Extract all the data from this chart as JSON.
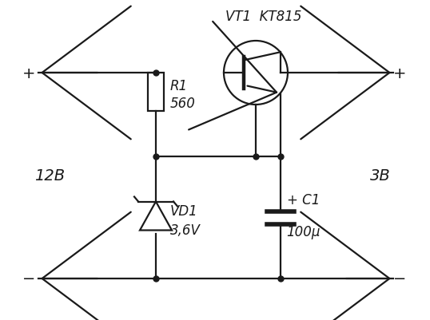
{
  "bg_color": "#ffffff",
  "line_color": "#1a1a1a",
  "figsize": [
    5.38,
    4.02
  ],
  "dpi": 100,
  "labels": {
    "vt1": "VT1  KT815",
    "r1": "R1",
    "r1_val": "560",
    "vd1": "VD1",
    "vd1_val": "3,6V",
    "c1_plus": "+ C1",
    "c1_val": "100μ",
    "v12": "12B",
    "v3": "3B",
    "plus_left": "+",
    "plus_right": "+",
    "minus_left": "−",
    "minus_right": "−"
  }
}
